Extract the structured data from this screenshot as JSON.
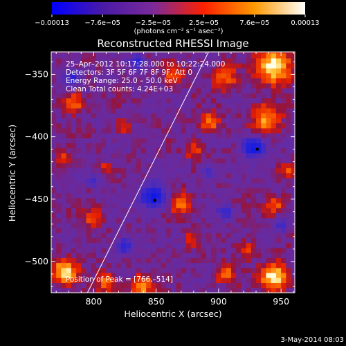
{
  "chart_data": {
    "type": "heatmap",
    "title": "Reconstructed RHESSI Image",
    "xlabel": "Heliocentric X (arcsec)",
    "ylabel": "Heliocentric Y (arcsec)",
    "xlim": [
      766,
      961
    ],
    "ylim": [
      -525,
      -332
    ],
    "x_ticks": [
      800,
      850,
      900,
      950
    ],
    "y_ticks": [
      -350,
      -400,
      -450,
      -500
    ],
    "x_tick_labels": [
      "800",
      "850",
      "900",
      "950"
    ],
    "y_tick_labels": [
      "−350",
      "−400",
      "−450",
      "−500"
    ],
    "colorbar": {
      "min": -0.00013,
      "max": 0.00013,
      "tick_labels": [
        "−0.00013",
        "−7.6e−05",
        "−2.5e−05",
        "2.5e−05",
        "7.6e−05",
        "0.00013"
      ],
      "unit": "(photons cm⁻² s⁻¹ asec⁻²)",
      "colors": [
        "#0000ff",
        "#4a1aa8",
        "#7a2a9a",
        "#ff2000",
        "#ff9a00",
        "#ffffff"
      ]
    },
    "info_lines": [
      "25–Apr–2012 10:17:28.000 to 10:22:24.000",
      "Detectors: 3F 5F 6F 7F 8F 9F, Att 0",
      "Energy Range: 25.0 – 50.0 keV",
      "Clean    Total counts: 4.24E+03"
    ],
    "peak_label": "Position of Peak = [766,–514]",
    "limb_line": [
      [
        795,
        -525
      ],
      [
        892,
        -332
      ]
    ],
    "hot_regions": [
      {
        "x": 945,
        "y": -343,
        "r": 14,
        "v": 1.0
      },
      {
        "x": 905,
        "y": -352,
        "r": 10,
        "v": 0.6
      },
      {
        "x": 865,
        "y": -350,
        "r": 8,
        "v": 0.55
      },
      {
        "x": 938,
        "y": -385,
        "r": 12,
        "v": 0.7
      },
      {
        "x": 893,
        "y": -388,
        "r": 8,
        "v": 0.65
      },
      {
        "x": 880,
        "y": -410,
        "r": 7,
        "v": 0.5
      },
      {
        "x": 784,
        "y": -372,
        "r": 9,
        "v": 0.6
      },
      {
        "x": 778,
        "y": -418,
        "r": 7,
        "v": 0.45
      },
      {
        "x": 823,
        "y": -392,
        "r": 6,
        "v": 0.4
      },
      {
        "x": 808,
        "y": -425,
        "r": 5,
        "v": 0.35
      },
      {
        "x": 800,
        "y": -465,
        "r": 8,
        "v": 0.55
      },
      {
        "x": 870,
        "y": -453,
        "r": 9,
        "v": 0.6
      },
      {
        "x": 878,
        "y": -482,
        "r": 6,
        "v": 0.4
      },
      {
        "x": 945,
        "y": -455,
        "r": 8,
        "v": 0.5
      },
      {
        "x": 955,
        "y": -428,
        "r": 6,
        "v": 0.45
      },
      {
        "x": 777,
        "y": -508,
        "r": 10,
        "v": 0.95
      },
      {
        "x": 810,
        "y": -517,
        "r": 8,
        "v": 0.6
      },
      {
        "x": 838,
        "y": -520,
        "r": 9,
        "v": 0.75
      },
      {
        "x": 905,
        "y": -510,
        "r": 8,
        "v": 0.6
      },
      {
        "x": 945,
        "y": -512,
        "r": 11,
        "v": 1.0
      },
      {
        "x": 923,
        "y": -490,
        "r": 7,
        "v": 0.5
      }
    ],
    "cold_regions": [
      {
        "x": 848,
        "y": -448,
        "r": 10,
        "v": 1.0
      },
      {
        "x": 928,
        "y": -408,
        "r": 9,
        "v": 0.95
      },
      {
        "x": 825,
        "y": -487,
        "r": 7,
        "v": 0.7
      },
      {
        "x": 783,
        "y": -352,
        "r": 7,
        "v": 0.65
      },
      {
        "x": 835,
        "y": -340,
        "r": 6,
        "v": 0.55
      },
      {
        "x": 905,
        "y": -460,
        "r": 6,
        "v": 0.55
      },
      {
        "x": 800,
        "y": -435,
        "r": 5,
        "v": 0.45
      },
      {
        "x": 892,
        "y": -428,
        "r": 6,
        "v": 0.5
      },
      {
        "x": 950,
        "y": -470,
        "r": 6,
        "v": 0.5
      }
    ],
    "markers": [
      [
        849,
        -451
      ],
      [
        931,
        -410
      ]
    ]
  },
  "footer": {
    "date": "3-May-2014 08:03"
  }
}
